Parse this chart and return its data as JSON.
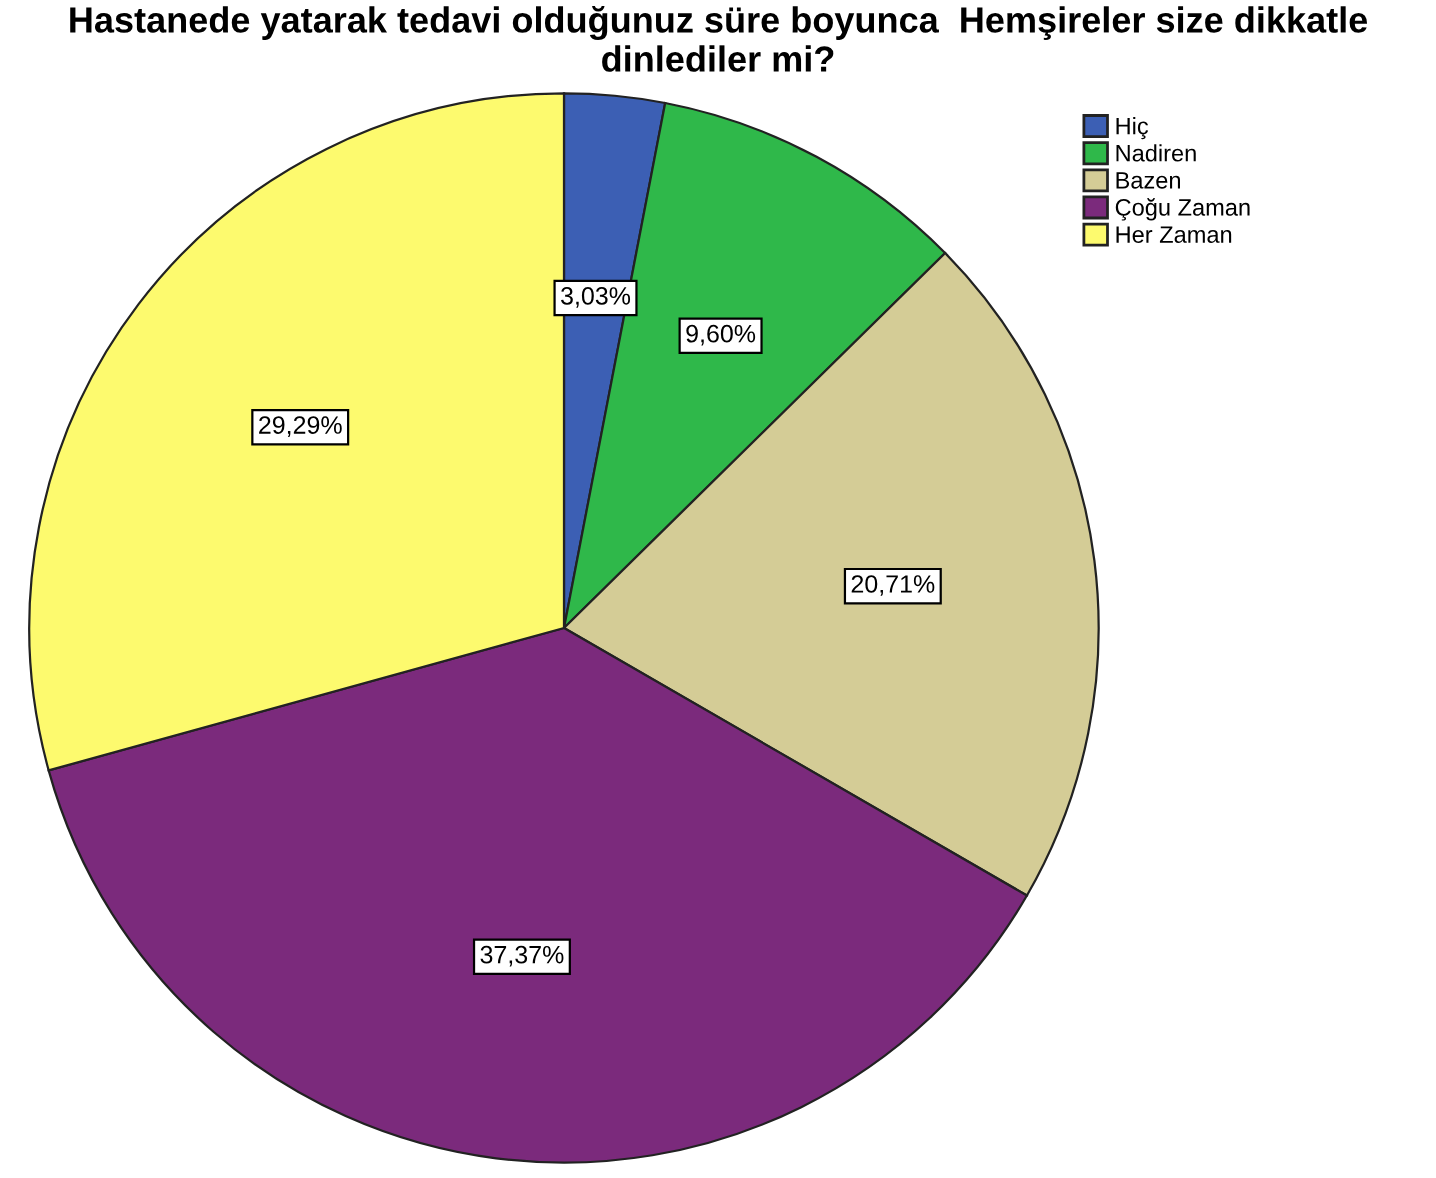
{
  "chart_data": {
    "type": "pie",
    "title": "Hastanede yatarak tedavi olduğunuz süre boyunca  Hemşireler size dikkatle dinlediler mi?",
    "categories": [
      "Hiç",
      "Nadiren",
      "Bazen",
      "Çoğu Zaman",
      "Her Zaman"
    ],
    "values": [
      3.03,
      9.6,
      20.71,
      37.37,
      29.29
    ],
    "value_labels": [
      "3,03%",
      "9,60%",
      "20,71%",
      "37,37%",
      "29,29%"
    ],
    "colors": [
      "#3c5fb4",
      "#2fb84a",
      "#d4cc96",
      "#7b2a7c",
      "#fdfa6e"
    ],
    "legend": "top right"
  }
}
